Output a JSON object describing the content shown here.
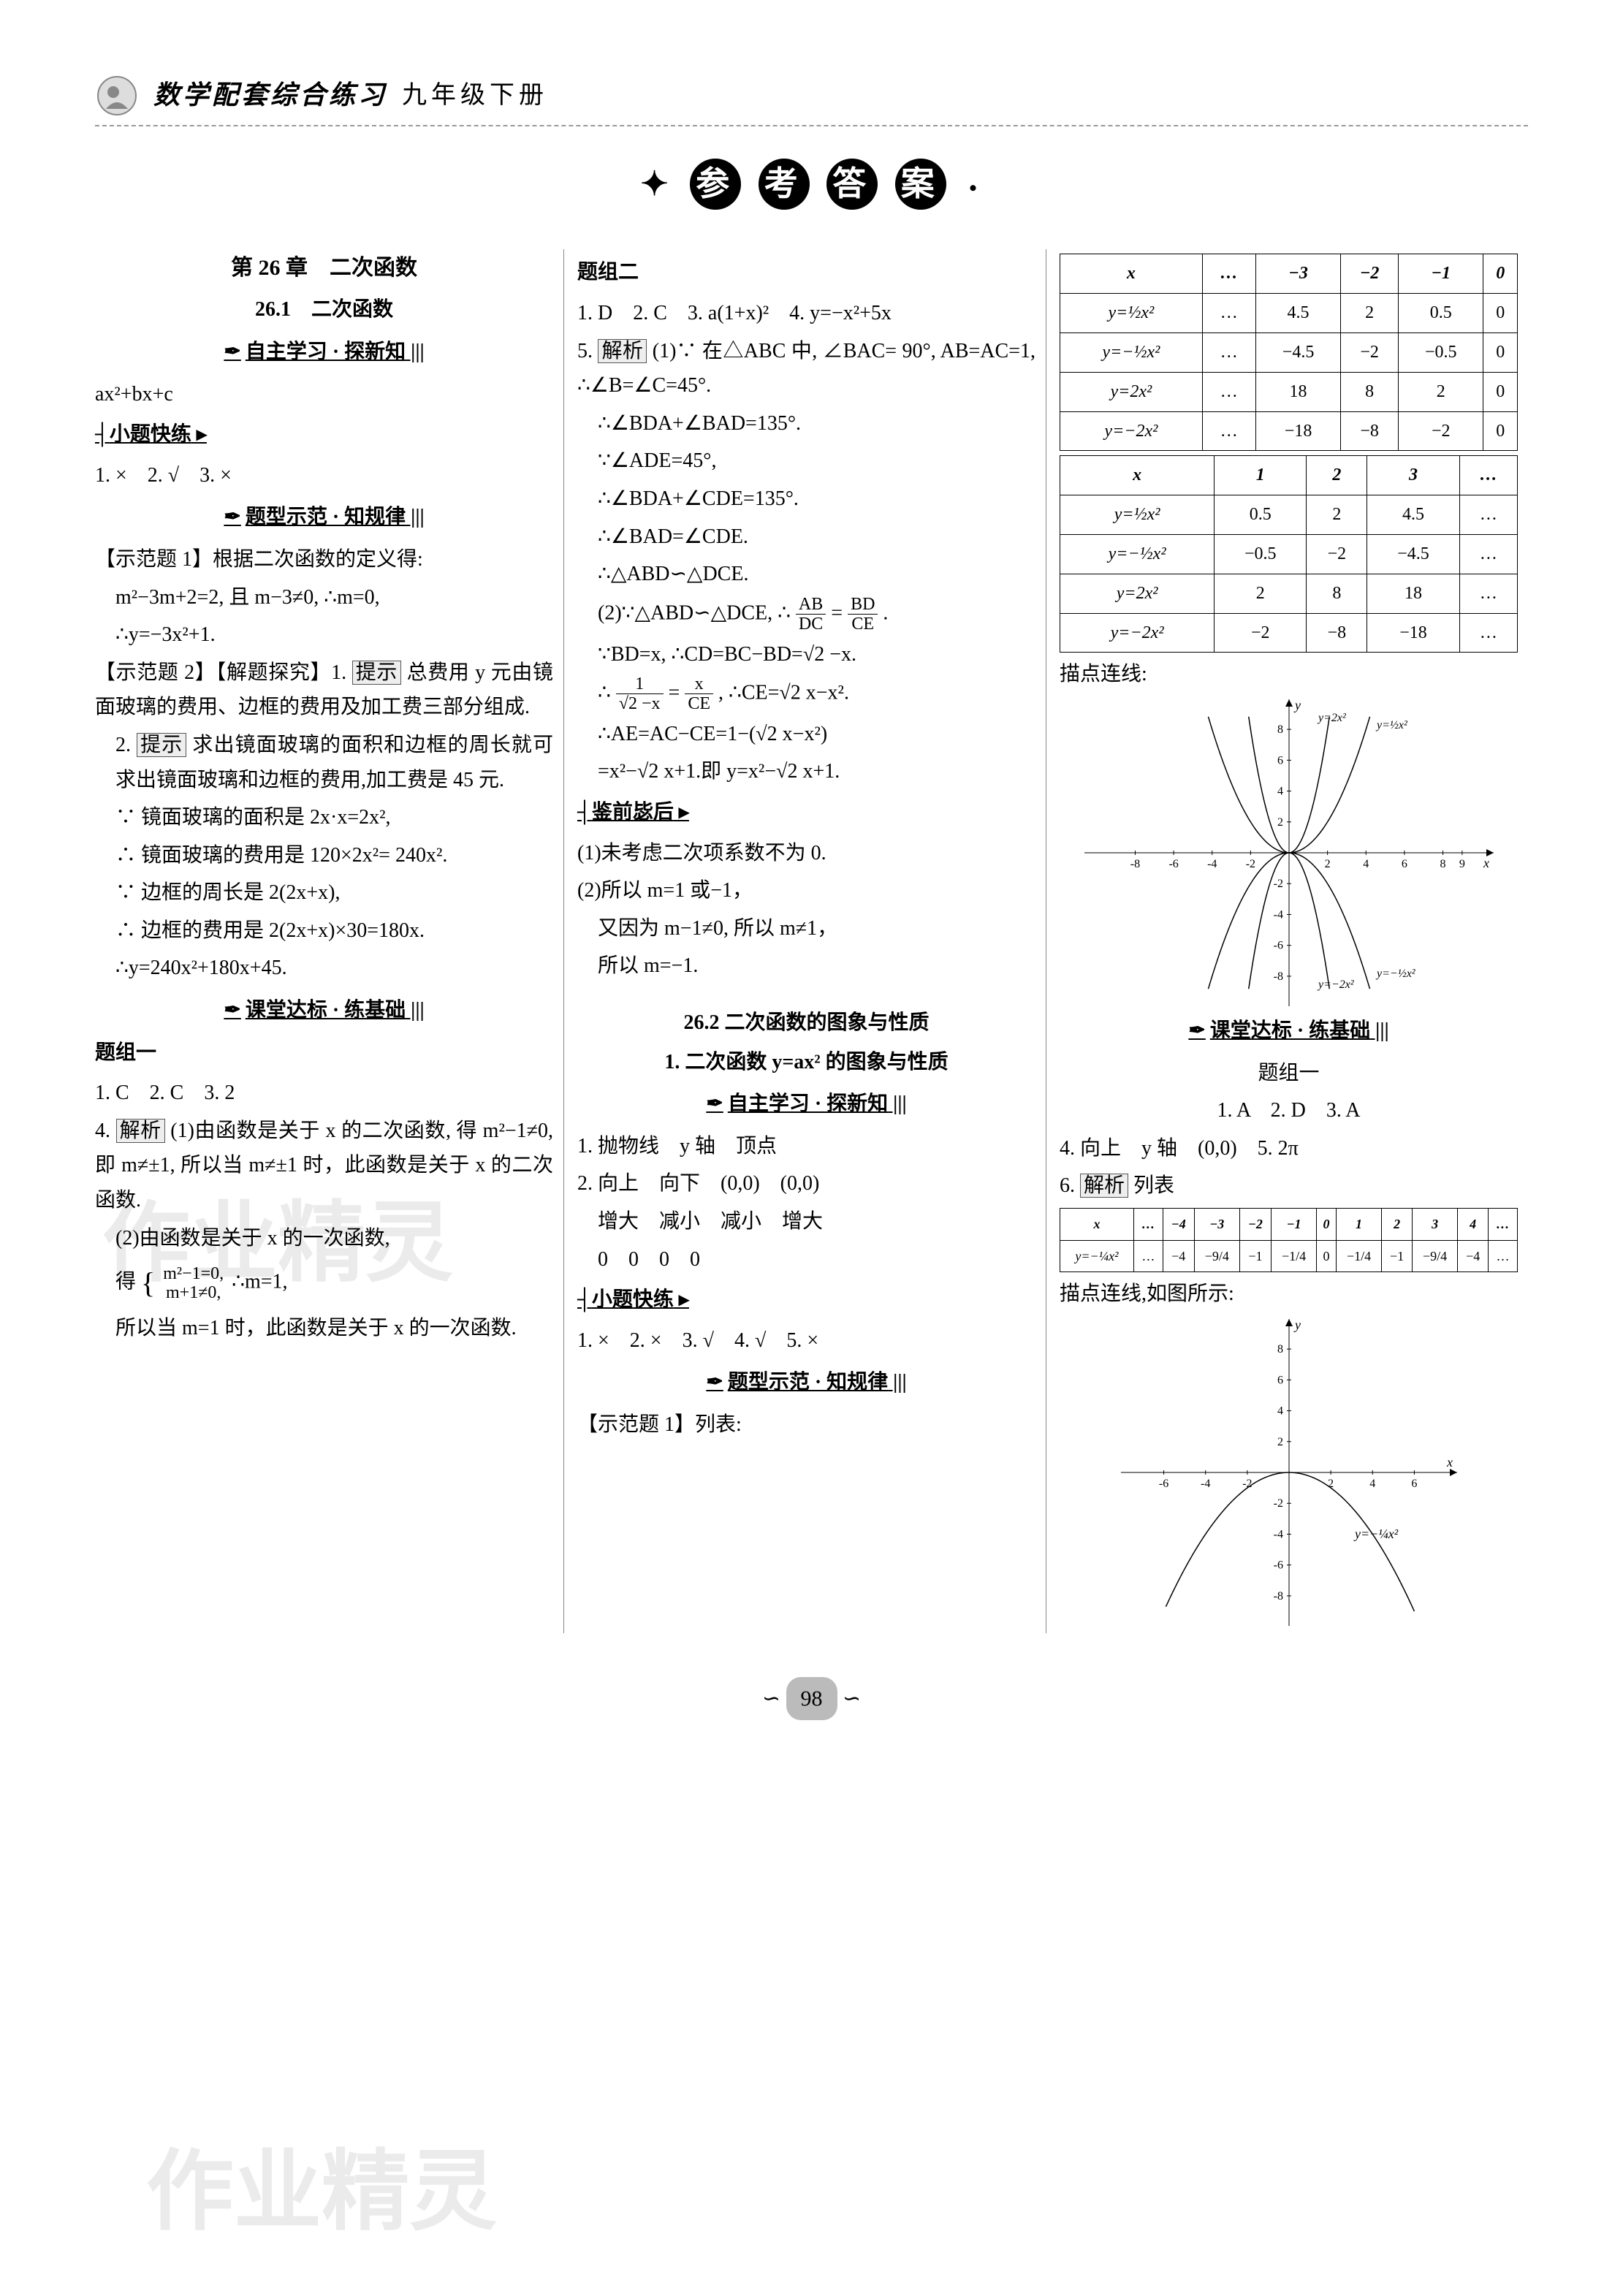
{
  "header": {
    "title": "数学配套综合练习",
    "subtitle": "九年级下册"
  },
  "banner": {
    "chars": [
      "参",
      "考",
      "答",
      "案"
    ],
    "dots": "•"
  },
  "col1": {
    "chapter": "第 26 章　二次函数",
    "section": "26.1　二次函数",
    "sub1": "自主学习 · 探新知",
    "expr": "ax²+bx+c",
    "quick_title": "小题快练",
    "quick_ans": "1. ×　2. √　3. ×",
    "sub2": "题型示范 · 知规律",
    "demo1_title": "【示范题 1】根据二次函数的定义得:",
    "demo1_l1": "m²−3m+2=2, 且 m−3≠0, ∴m=0,",
    "demo1_l2": "∴y=−3x²+1.",
    "demo2_title": "【示范题 2】【解题探究】1.",
    "demo2_hint": "提示",
    "demo2_l1": " 总费用 y 元由镜面玻璃的费用、边框的费用及加工费三部分组成.",
    "demo2_l2": "2.",
    "demo2_l2b": " 求出镜面玻璃的面积和边框的周长就可求出镜面玻璃和边框的费用,加工费是 45 元.",
    "demo2_l3": "∵ 镜面玻璃的面积是 2x·x=2x²,",
    "demo2_l4": "∴ 镜面玻璃的费用是 120×2x²= 240x².",
    "demo2_l5": "∵ 边框的周长是 2(2x+x),",
    "demo2_l6": "∴ 边框的费用是 2(2x+x)×30=180x.",
    "demo2_l7": "∴y=240x²+180x+45.",
    "sub3": "课堂达标 · 练基础",
    "group1_title": "题组一",
    "group1_ans": "1. C　2. C　3. 2",
    "q4_title": "4.",
    "q4_label": "解析",
    "q4_l1": " (1)由函数是关于 x 的二次函数, 得 m²−1≠0, 即 m≠±1, 所以当 m≠±1 时，此函数是关于 x 的二次函数.",
    "q4_l2": "(2)由函数是关于 x 的一次函数,",
    "q4_l3": "得",
    "q4_brace_top": "m²−1=0,",
    "q4_brace_bot": "m+1≠0,",
    "q4_l3b": "∴m=1,",
    "q4_l4": "所以当 m=1 时，此函数是关于 x 的一次函数."
  },
  "col2": {
    "group2_title": "题组二",
    "group2_ans": "1. D　2. C　3. a(1+x)²　4. y=−x²+5x",
    "q5_title": "5.",
    "q5_label": "解析",
    "q5_l1": " (1)∵ 在△ABC 中, ∠BAC= 90°, AB=AC=1, ∴∠B=∠C=45°.",
    "q5_l2": "∴∠BDA+∠BAD=135°.",
    "q5_l3": "∵∠ADE=45°,",
    "q5_l4": "∴∠BDA+∠CDE=135°.",
    "q5_l5": "∴∠BAD=∠CDE.",
    "q5_l6": "∴△ABD∽△DCE.",
    "q5_l7": "(2)∵△ABD∽△DCE, ∴",
    "q5_l7_frac_a": "AB",
    "q5_l7_frac_b": "DC",
    "q5_l7_eq": "=",
    "q5_l7_frac_c": "BD",
    "q5_l7_frac_d": "CE",
    "q5_l7_end": ".",
    "q5_l8": "∵BD=x, ∴CD=BC−BD=√2 −x.",
    "q5_l9a": "∴",
    "q5_l9_frac_a": "1",
    "q5_l9_frac_b": "√2 −x",
    "q5_l9_eq": "=",
    "q5_l9_frac_c": "x",
    "q5_l9_frac_d": "CE",
    "q5_l9b": ", ∴CE=√2 x−x².",
    "q5_l10": "∴AE=AC−CE=1−(√2 x−x²)",
    "q5_l11": "=x²−√2 x+1.即 y=x²−√2 x+1.",
    "lesson_title": "鉴前毖后",
    "lesson_l1": "(1)未考虑二次项系数不为 0.",
    "lesson_l2": "(2)所以 m=1 或−1，",
    "lesson_l3": "又因为 m−1≠0, 所以 m≠1，",
    "lesson_l4": "所以 m=−1.",
    "section2": "26.2 二次函数的图象与性质",
    "section2_sub": "1. 二次函数 y=ax² 的图象与性质",
    "sub4": "自主学习 · 探新知",
    "line1": "1. 抛物线　y 轴　顶点",
    "line2": "2. 向上　向下　(0,0)　(0,0)",
    "line3": "增大　减小　减小　增大",
    "line4": "0　0　0　0",
    "quick2_title": "小题快练",
    "quick2_ans": "1. ×　2. ×　3. √　4. √　5. ×",
    "sub5": "题型示范 · 知规律",
    "demo3_title": "【示范题 1】列表:"
  },
  "col3": {
    "table1": {
      "headers": [
        "x",
        "…",
        "−3",
        "−2",
        "−1",
        "0"
      ],
      "rows": [
        [
          "y=½x²",
          "…",
          "4.5",
          "2",
          "0.5",
          "0"
        ],
        [
          "y=−½x²",
          "…",
          "−4.5",
          "−2",
          "−0.5",
          "0"
        ],
        [
          "y=2x²",
          "…",
          "18",
          "8",
          "2",
          "0"
        ],
        [
          "y=−2x²",
          "…",
          "−18",
          "−8",
          "−2",
          "0"
        ]
      ]
    },
    "table2": {
      "headers": [
        "x",
        "1",
        "2",
        "3",
        "…"
      ],
      "rows": [
        [
          "y=½x²",
          "0.5",
          "2",
          "4.5",
          "…"
        ],
        [
          "y=−½x²",
          "−0.5",
          "−2",
          "−4.5",
          "…"
        ],
        [
          "y=2x²",
          "2",
          "8",
          "18",
          "…"
        ],
        [
          "y=−2x²",
          "−2",
          "−8",
          "−18",
          "…"
        ]
      ]
    },
    "graph1_title": "描点连线:",
    "graph1": {
      "xlim": [
        -9,
        10
      ],
      "ylim": [
        -9,
        9
      ],
      "xticks": [
        -8,
        -6,
        -4,
        -2,
        2,
        4,
        6,
        8,
        9
      ],
      "yticks": [
        -8,
        -6,
        -4,
        -2,
        2,
        4,
        6,
        8
      ],
      "curves": [
        {
          "label": "y=2x²",
          "color": "#000",
          "a": 2
        },
        {
          "label": "y=½x²",
          "color": "#000",
          "a": 0.5
        },
        {
          "label": "y=−½x²",
          "color": "#000",
          "a": -0.5
        },
        {
          "label": "y=−2x²",
          "color": "#000",
          "a": -2
        }
      ],
      "background": "#ffffff"
    },
    "sub6": "课堂达标 · 练基础",
    "group1b_title": "题组一",
    "group1b_ans": "1. A　2. D　3. A",
    "q4b": "4. 向上　y 轴　(0,0)　5. 2π",
    "q6_title": "6.",
    "q6_label": "解析",
    "q6_after": " 列表",
    "table3": {
      "headers": [
        "x",
        "…",
        "−4",
        "−3",
        "−2",
        "−1",
        "0",
        "1",
        "2",
        "3",
        "4",
        "…"
      ],
      "rows": [
        [
          "y=−¼x²",
          "…",
          "−4",
          "−9/4",
          "−1",
          "−1/4",
          "0",
          "−1/4",
          "−1",
          "−9/4",
          "−4",
          "…"
        ]
      ]
    },
    "graph2_title": "描点连线,如图所示:",
    "graph2": {
      "xlim": [
        -7,
        7
      ],
      "ylim": [
        -9,
        9
      ],
      "xticks": [
        -6,
        -4,
        -2,
        2,
        4,
        6
      ],
      "yticks": [
        -8,
        -6,
        -4,
        -2,
        2,
        4,
        6,
        8
      ],
      "curve": {
        "label": "y=−¼x²",
        "a": -0.25,
        "color": "#000"
      },
      "background": "#ffffff"
    }
  },
  "footer": {
    "pagenum": "98",
    "deco_l": "∽",
    "deco_r": "∽"
  },
  "watermark": "作业精灵"
}
